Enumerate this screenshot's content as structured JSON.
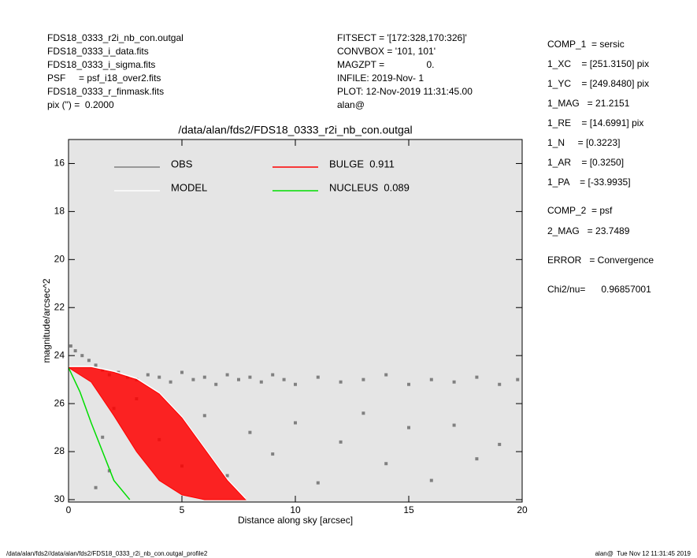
{
  "header_left": [
    "FDS18_0333_r2i_nb_con.outgal",
    "FDS18_0333_i_data.fits",
    "FDS18_0333_i_sigma.fits",
    "PSF     = psf_i18_over2.fits",
    "FDS18_0333_r_finmask.fits",
    "pix (\") =  0.2000"
  ],
  "header_middle": [
    "FITSECT = '[172:328,170:326]'",
    "CONVBOX = '101, 101'",
    "MAGZPT =                0.",
    "INFILE: 2019-Nov- 1",
    "PLOT: 12-Nov-2019 11:31:45.00",
    "alan@"
  ],
  "parameters": [
    "COMP_1  = sersic",
    "1_XC    = [251.3150] pix",
    "1_YC    = [249.8480] pix",
    "1_MAG   = 21.2151",
    "1_RE    = [14.6991] pix",
    "1_N     = [0.3223]",
    "1_AR    = [0.3250]",
    "1_PA    = [-33.9935]",
    "COMP_2  = psf",
    "2_MAG   = 23.7489",
    "ERROR   = Convergence",
    "Chi2/nu=      0.96857001"
  ],
  "footer_left": "/data/alan/fds2//data/alan/fds2/FDS18_0333_r2i_nb_con.outgal_profile2",
  "footer_right": "alan@  Tue Nov 12 11:31:45 2019",
  "chart_data": {
    "type": "line",
    "title": "/data/alan/fds2/FDS18_0333_r2i_nb_con.outgal",
    "x_label": "Distance along sky [arcsec]",
    "y_label": "magnitude/arcsec^2",
    "xlim": [
      0,
      20
    ],
    "ylim": [
      30.1,
      15
    ],
    "xticks": [
      0,
      5,
      10,
      15,
      20
    ],
    "yticks": [
      16,
      18,
      20,
      22,
      24,
      26,
      28,
      30
    ],
    "background": "#e5e5e5",
    "series": [
      {
        "name": "OBS",
        "color": "#808080",
        "marker": "square",
        "x": [
          0.1,
          0.3,
          0.6,
          0.9,
          1.2,
          1.5,
          1.8,
          2.2,
          2.6,
          3,
          3.5,
          4,
          4.5,
          5,
          5.5,
          6,
          6.5,
          7,
          7.5,
          8,
          8.5,
          9,
          9.5,
          10,
          11,
          12,
          13,
          14,
          15,
          16,
          17,
          18,
          19,
          19.8,
          2,
          3,
          4,
          5,
          6,
          7,
          8,
          9,
          10,
          11,
          12,
          13,
          14,
          15,
          16,
          17,
          18,
          19,
          1.5,
          1.8,
          1.2
        ],
        "values": [
          23.6,
          23.8,
          24.0,
          24.2,
          24.4,
          24.6,
          24.8,
          24.7,
          24.9,
          25.0,
          24.8,
          24.9,
          25.1,
          24.7,
          25.0,
          24.9,
          25.2,
          24.8,
          25.0,
          24.9,
          25.1,
          24.8,
          25.0,
          25.2,
          24.9,
          25.1,
          25.0,
          24.8,
          25.2,
          25.0,
          25.1,
          24.9,
          25.2,
          25.0,
          26.2,
          25.8,
          27.5,
          28.6,
          26.5,
          29.0,
          27.2,
          28.1,
          26.8,
          29.3,
          27.6,
          26.4,
          28.5,
          27.0,
          29.2,
          26.9,
          28.3,
          27.7,
          27.4,
          28.8,
          29.5
        ]
      },
      {
        "name": "MODEL",
        "color": "#ffffff",
        "x": [
          0,
          1,
          2,
          3,
          4,
          5,
          6,
          7,
          7.8
        ],
        "values": [
          24.45,
          24.45,
          24.65,
          24.95,
          25.55,
          26.55,
          27.85,
          29.15,
          29.95
        ]
      },
      {
        "name": "BULGE  0.911",
        "color": "#ff0000",
        "x": [
          0,
          1,
          2,
          3,
          4,
          5,
          6,
          7,
          7.8
        ],
        "values": [
          24.5,
          24.5,
          24.7,
          25.0,
          25.6,
          26.6,
          27.9,
          29.2,
          30.0
        ],
        "lower": [
          24.5,
          25.1,
          26.5,
          28.0,
          29.2,
          29.8,
          30.0,
          30.0,
          30.0
        ]
      },
      {
        "name": "NUCLEUS  0.089",
        "color": "#00dd00",
        "x": [
          0,
          0.5,
          1,
          1.5,
          2,
          2.7
        ],
        "values": [
          24.5,
          25.5,
          26.8,
          28.0,
          29.2,
          30.0
        ]
      }
    ]
  }
}
